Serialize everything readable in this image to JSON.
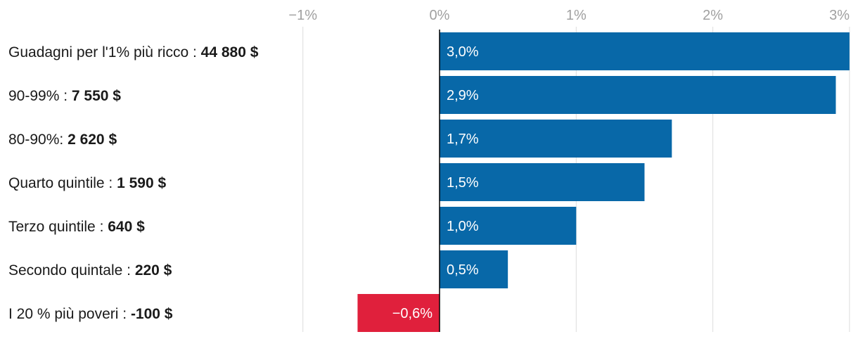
{
  "chart_data": {
    "type": "bar",
    "orientation": "horizontal",
    "title": "",
    "xlabel": "",
    "ylabel": "",
    "xlim": [
      -1,
      3
    ],
    "x_ticks": [
      {
        "value": -1,
        "label": "−1%"
      },
      {
        "value": 0,
        "label": "0%"
      },
      {
        "value": 1,
        "label": "1%"
      },
      {
        "value": 2,
        "label": "2%"
      },
      {
        "value": 3,
        "label": "3%"
      }
    ],
    "grid": true,
    "categories": [
      {
        "label": "Guadagni per l'1% più ricco : ",
        "amount": "44 880 $",
        "value": 3.0,
        "value_label": "3,0%"
      },
      {
        "label": "90-99% : ",
        "amount": "7 550 $",
        "value": 2.9,
        "value_label": "2,9%"
      },
      {
        "label": "80-90%: ",
        "amount": "2 620 $",
        "value": 1.7,
        "value_label": "1,7%"
      },
      {
        "label": "Quarto quintile : ",
        "amount": "1 590 $",
        "value": 1.5,
        "value_label": "1,5%"
      },
      {
        "label": "Terzo quintile : ",
        "amount": "640 $",
        "value": 1.0,
        "value_label": "1,0%"
      },
      {
        "label": "Secondo quintale : ",
        "amount": "220 $",
        "value": 0.5,
        "value_label": "0,5%"
      },
      {
        "label": "I 20 % più poveri : ",
        "amount": "-100 $",
        "value": -0.6,
        "value_label": "−0,6%"
      }
    ],
    "colors": {
      "positive": "#0868a8",
      "negative": "#e0203c"
    }
  }
}
